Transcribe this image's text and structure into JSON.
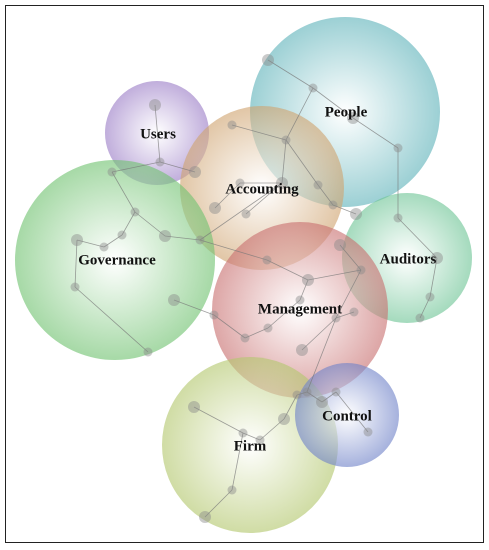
{
  "nodes": [
    {
      "label": "People"
    },
    {
      "label": "Users"
    },
    {
      "label": "Accounting"
    },
    {
      "label": "Governance"
    },
    {
      "label": "Auditors"
    },
    {
      "label": "Management"
    },
    {
      "label": "Control"
    },
    {
      "label": "Firm"
    }
  ]
}
